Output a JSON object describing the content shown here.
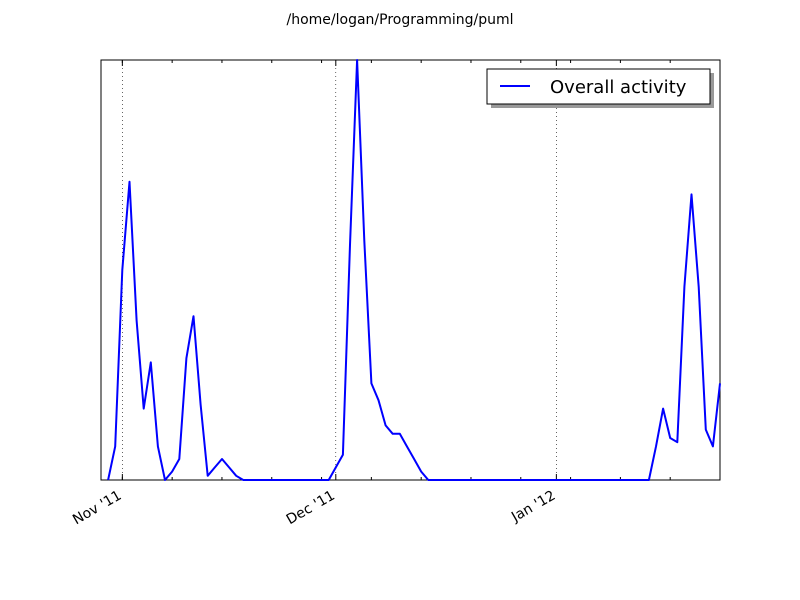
{
  "chart_data": {
    "type": "line",
    "title": "/home/logan/Programming/puml",
    "xlabel": "",
    "ylabel": "",
    "x_tick_labels": [
      "Nov '11",
      "Dec '11",
      "Jan '12"
    ],
    "x_tick_dates": [
      "2011-11-01",
      "2011-12-01",
      "2012-01-01"
    ],
    "xlim": [
      "2011-10-29",
      "2012-01-24"
    ],
    "ylim": [
      0,
      100
    ],
    "y_tick_labels": false,
    "grid": "vertical dotted at major ticks",
    "legend": {
      "placement": "top-right",
      "entries": [
        "Overall activity"
      ]
    },
    "series": [
      {
        "name": "Overall activity",
        "color": "#0000ff",
        "x": [
          "2011-10-30",
          "2011-10-31",
          "2011-11-01",
          "2011-11-02",
          "2011-11-03",
          "2011-11-04",
          "2011-11-05",
          "2011-11-06",
          "2011-11-07",
          "2011-11-08",
          "2011-11-09",
          "2011-11-10",
          "2011-11-11",
          "2011-11-12",
          "2011-11-13",
          "2011-11-14",
          "2011-11-15",
          "2011-11-16",
          "2011-11-17",
          "2011-11-18",
          "2011-11-19",
          "2011-11-20",
          "2011-11-21",
          "2011-11-22",
          "2011-11-23",
          "2011-11-24",
          "2011-11-25",
          "2011-11-26",
          "2011-11-27",
          "2011-11-28",
          "2011-11-29",
          "2011-11-30",
          "2011-12-01",
          "2011-12-02",
          "2011-12-03",
          "2011-12-04",
          "2011-12-05",
          "2011-12-06",
          "2011-12-07",
          "2011-12-08",
          "2011-12-09",
          "2011-12-10",
          "2011-12-11",
          "2011-12-12",
          "2011-12-13",
          "2011-12-14",
          "2011-12-15",
          "2011-12-16",
          "2011-12-17",
          "2011-12-18",
          "2011-12-19",
          "2011-12-20",
          "2011-12-21",
          "2011-12-22",
          "2011-12-23",
          "2011-12-24",
          "2011-12-25",
          "2011-12-26",
          "2011-12-27",
          "2011-12-28",
          "2011-12-29",
          "2011-12-30",
          "2011-12-31",
          "2012-01-01",
          "2012-01-02",
          "2012-01-03",
          "2012-01-04",
          "2012-01-05",
          "2012-01-06",
          "2012-01-07",
          "2012-01-08",
          "2012-01-09",
          "2012-01-10",
          "2012-01-11",
          "2012-01-12",
          "2012-01-13",
          "2012-01-14",
          "2012-01-15",
          "2012-01-16",
          "2012-01-17",
          "2012-01-18",
          "2012-01-19",
          "2012-01-20",
          "2012-01-21",
          "2012-01-22",
          "2012-01-23",
          "2012-01-24"
        ],
        "values": [
          0,
          8,
          50,
          71,
          38,
          17,
          28,
          8,
          0,
          2,
          5,
          29,
          39,
          18,
          1,
          3,
          5,
          3,
          1,
          0,
          0,
          0,
          0,
          0,
          0,
          0,
          0,
          0,
          0,
          0,
          0,
          0,
          3,
          6,
          56,
          100,
          57,
          23,
          19,
          13,
          11,
          11,
          8,
          5,
          2,
          0,
          0,
          0,
          0,
          0,
          0,
          0,
          0,
          0,
          0,
          0,
          0,
          0,
          0,
          0,
          0,
          0,
          0,
          0,
          0,
          0,
          0,
          0,
          0,
          0,
          0,
          0,
          0,
          0,
          0,
          0,
          0,
          8,
          17,
          10,
          9,
          46,
          68,
          46,
          12,
          8,
          23
        ]
      }
    ]
  }
}
